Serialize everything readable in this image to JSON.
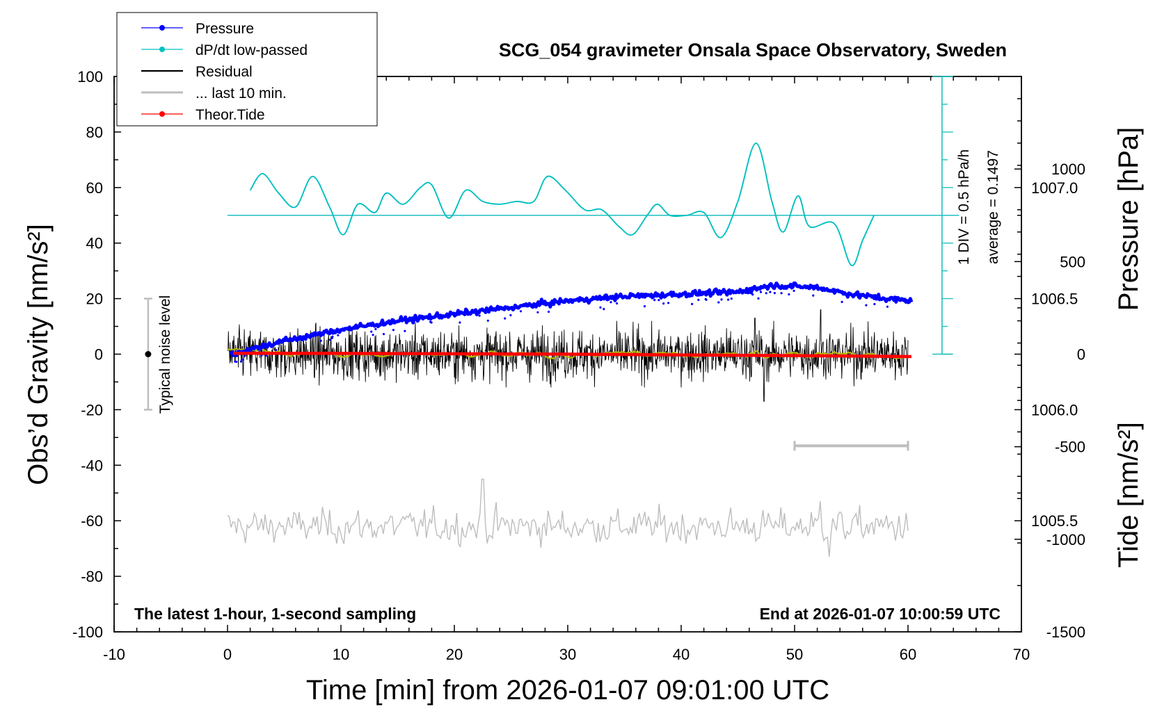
{
  "chart_data": {
    "type": "line",
    "title": "SCG_054 gravimeter Onsala Space Observatory, Sweden",
    "xlabel": "Time [min] from 2026-01-07 09:01:00 UTC",
    "ylabel_left": "Obs’d Gravity [nm/s²]",
    "ylabel_right_top": "Pressure [hPa]",
    "ylabel_right_bottom": "Tide [nm/s²]",
    "xlim": [
      -10,
      70
    ],
    "ylim": [
      -100,
      100
    ],
    "pressure_lim": [
      1005.0,
      1007.5
    ],
    "tide_lim": [
      -1500,
      1500
    ],
    "x_ticks": [
      "-10",
      "0",
      "10",
      "20",
      "30",
      "40",
      "50",
      "60",
      "70"
    ],
    "y_ticks": [
      "-100",
      "-80",
      "-60",
      "-40",
      "-20",
      "0",
      "20",
      "40",
      "60",
      "80",
      "100"
    ],
    "pressure_ticks": [
      "1005.5",
      "1006.0",
      "1006.5",
      "1007.0"
    ],
    "tide_ticks": [
      "-1500",
      "-1000",
      "-500",
      "0",
      "500",
      "1000"
    ],
    "bottom_left_text": "The latest 1-hour, 1-second sampling",
    "bottom_right_text": "End at 2026-01-07 10:00:59 UTC",
    "noise_label": "Typical noise level",
    "noise_bar": {
      "x": -7,
      "center": 0,
      "half_range": 20
    },
    "dpdt_scale_text": "1 DIV = 0.5 hPa/h",
    "dpdt_average_text": "average = 0.1497",
    "dpdt_zero_level": 50,
    "last10_bar": {
      "x_start": 50,
      "x_end": 60,
      "y": -33
    },
    "legend": [
      {
        "label": "Pressure",
        "color": "#0000ff",
        "marker": true
      },
      {
        "label": "dP/dt low-passed",
        "color": "#00c0c0",
        "marker": true
      },
      {
        "label": "Residual",
        "color": "#000000",
        "marker": false
      },
      {
        "label": "... last 10 min.",
        "color": "#bdbdbd",
        "marker": false
      },
      {
        "label": "Theor.Tide",
        "color": "#ff0000",
        "marker": true
      }
    ],
    "series": [
      {
        "name": "Pressure",
        "axis": "pressure",
        "color": "#0000ff",
        "x": [
          0.3,
          5,
          10,
          15,
          20,
          25,
          30,
          35,
          40,
          45,
          48,
          52,
          55,
          58,
          60.3
        ],
        "values": [
          1006.25,
          1006.31,
          1006.36,
          1006.4,
          1006.43,
          1006.46,
          1006.49,
          1006.51,
          1006.52,
          1006.53,
          1006.56,
          1006.55,
          1006.52,
          1006.5,
          1006.49
        ]
      },
      {
        "name": "dP/dt low-passed",
        "axis": "gravity",
        "color": "#00c0c0",
        "x": [
          2,
          3.1,
          4.5,
          6,
          7.5,
          9,
          10.2,
          11.5,
          13,
          14,
          15.5,
          17,
          18,
          19.5,
          21,
          22.5,
          24,
          25.5,
          27,
          28.2,
          29.8,
          31.5,
          33,
          34.5,
          35.7,
          37,
          37.9,
          39,
          40.5,
          42,
          43.5,
          45,
          46.6,
          48,
          49,
          50.3,
          51.3,
          53.5,
          55,
          56,
          57
        ],
        "values": [
          59,
          65,
          58,
          53,
          64,
          53,
          43,
          54,
          51,
          58,
          54,
          60,
          61,
          49,
          59,
          55,
          54,
          55,
          55,
          64,
          59,
          52,
          52,
          46,
          43,
          50,
          54,
          50,
          50,
          51,
          42,
          55,
          76,
          55,
          44,
          57,
          46,
          47,
          32,
          41,
          50
        ]
      },
      {
        "name": "Residual",
        "axis": "gravity",
        "color": "#000000",
        "x_range": [
          0,
          60
        ],
        "mean": 0,
        "spread_nm_s2": 5,
        "extremes": [
          {
            "x": 46.5,
            "value": 13
          },
          {
            "x": 47.3,
            "value": -17
          },
          {
            "x": 52.3,
            "value": 16
          }
        ]
      },
      {
        "name": "Residual smoothed",
        "axis": "gravity",
        "color": "#b5b500",
        "x_range": [
          0,
          60
        ],
        "mean": 0
      },
      {
        "name": "... last 10 min.",
        "axis": "gravity",
        "color": "#bdbdbd",
        "x_range": [
          0,
          60
        ],
        "mean": -62,
        "spread_nm_s2": 5,
        "extremes": [
          {
            "x": 22.5,
            "value": -45
          },
          {
            "x": 52.3,
            "value": -53
          },
          {
            "x": 53.1,
            "value": -73
          }
        ]
      },
      {
        "name": "Theor.Tide",
        "axis": "tide",
        "color": "#ff0000",
        "x": [
          0.5,
          10,
          20,
          30,
          40,
          50,
          60.3
        ],
        "values": [
          5,
          4,
          2,
          0,
          -4,
          -8,
          -13
        ]
      }
    ]
  }
}
